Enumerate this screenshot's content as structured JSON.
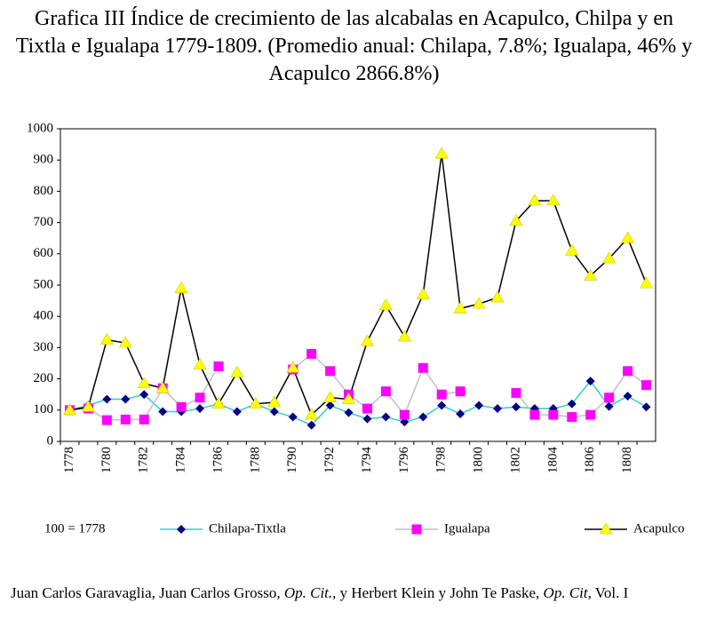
{
  "chart_data": {
    "type": "line",
    "title": "Grafica III Índice de crecimiento de las alcabalas en  Acapulco, Chilpa y en Tixtla e Igualapa 1779-1809. (Promedio anual: Chilapa, 7.8%; Igualapa, 46% y Acapulco 2866.8%)",
    "note": "100 = 1778",
    "source": [
      "Juan Carlos Garavaglia, Juan Carlos Grosso, ",
      "Op. Cit.",
      ", y  Herbert Klein y John Te Paske, ",
      "Op. Cit",
      ", Vol. I"
    ],
    "categories": [
      "1778",
      null,
      "1780",
      null,
      "1782",
      null,
      "1784",
      null,
      "1786",
      null,
      "1788",
      null,
      "1790",
      null,
      "1792",
      null,
      "1794",
      null,
      "1796",
      null,
      "1798",
      null,
      "1800",
      null,
      "1802",
      null,
      "1804",
      null,
      "1806",
      null,
      "1808",
      null
    ],
    "series": [
      {
        "name": "Chilapa-Tixtla",
        "color": "#000080",
        "line_color": "#33cccc",
        "marker": "diamond",
        "values": [
          100,
          115,
          135,
          135,
          150,
          95,
          95,
          105,
          120,
          95,
          120,
          95,
          78,
          52,
          115,
          92,
          72,
          78,
          62,
          78,
          115,
          88,
          115,
          105,
          110,
          105,
          105,
          120,
          193,
          112,
          145,
          110
        ]
      },
      {
        "name": "Igualapa",
        "color": "#ff00ff",
        "line_color": "#c0c0c0",
        "marker": "square",
        "values": [
          100,
          105,
          68,
          70,
          70,
          170,
          110,
          140,
          240,
          null,
          null,
          null,
          230,
          280,
          225,
          150,
          105,
          160,
          85,
          235,
          150,
          160,
          null,
          null,
          155,
          85,
          85,
          78,
          85,
          140,
          225,
          180
        ]
      },
      {
        "name": "Acapulco",
        "color": "#ffff00",
        "line_color": "#000000",
        "marker": "triangle",
        "values": [
          100,
          110,
          325,
          315,
          185,
          170,
          490,
          245,
          120,
          220,
          120,
          125,
          235,
          85,
          140,
          135,
          320,
          435,
          335,
          470,
          920,
          425,
          440,
          460,
          705,
          770,
          770,
          610,
          530,
          585,
          650,
          505
        ]
      }
    ],
    "ylim": [
      0,
      1000
    ],
    "yticks": [
      0,
      100,
      200,
      300,
      400,
      500,
      600,
      700,
      800,
      900,
      1000
    ],
    "grid": false
  }
}
